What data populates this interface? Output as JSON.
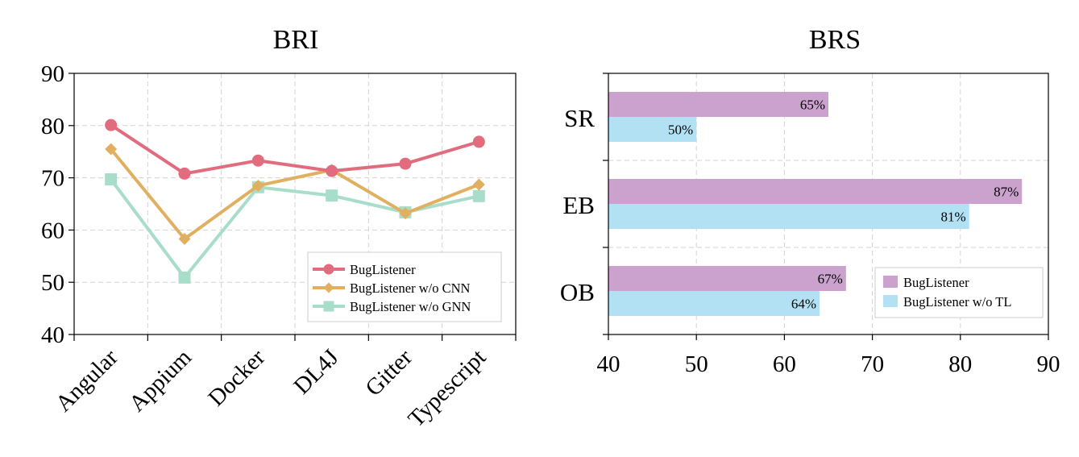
{
  "chart_data": [
    {
      "type": "line",
      "title": "BRI",
      "categories": [
        "Angular",
        "Appium",
        "Docker",
        "DL4J",
        "Gitter",
        "Typescript"
      ],
      "ylim": [
        40,
        90
      ],
      "yticks": [
        40,
        50,
        60,
        70,
        80,
        90
      ],
      "grid": true,
      "legend": "bottom-right",
      "series": [
        {
          "name": "BugListener",
          "color": "#e06c7d",
          "marker": "circle",
          "values": [
            80.1,
            70.8,
            73.3,
            71.3,
            72.7,
            76.9
          ]
        },
        {
          "name": "BugListener w/o CNN",
          "color": "#e0b060",
          "marker": "diamond",
          "values": [
            75.5,
            58.3,
            68.5,
            71.5,
            63.2,
            68.7
          ]
        },
        {
          "name": "BugListener w/o GNN",
          "color": "#a7ddc9",
          "marker": "square",
          "values": [
            69.7,
            50.9,
            68.2,
            66.6,
            63.4,
            66.5
          ]
        }
      ]
    },
    {
      "type": "bar",
      "orientation": "horizontal",
      "title": "BRS",
      "categories": [
        "SR",
        "EB",
        "OB"
      ],
      "xlim": [
        40,
        90
      ],
      "xticks": [
        40,
        50,
        60,
        70,
        80,
        90
      ],
      "grid": true,
      "legend": "bottom-right",
      "series": [
        {
          "name": "BugListener",
          "color": "#cba1ce",
          "values": [
            65,
            87,
            67
          ],
          "labels": [
            "65%",
            "87%",
            "67%"
          ]
        },
        {
          "name": "BugListener w/o TL",
          "color": "#b1e1f3",
          "values": [
            50,
            81,
            64
          ],
          "labels": [
            "50%",
            "81%",
            "64%"
          ]
        }
      ]
    }
  ]
}
